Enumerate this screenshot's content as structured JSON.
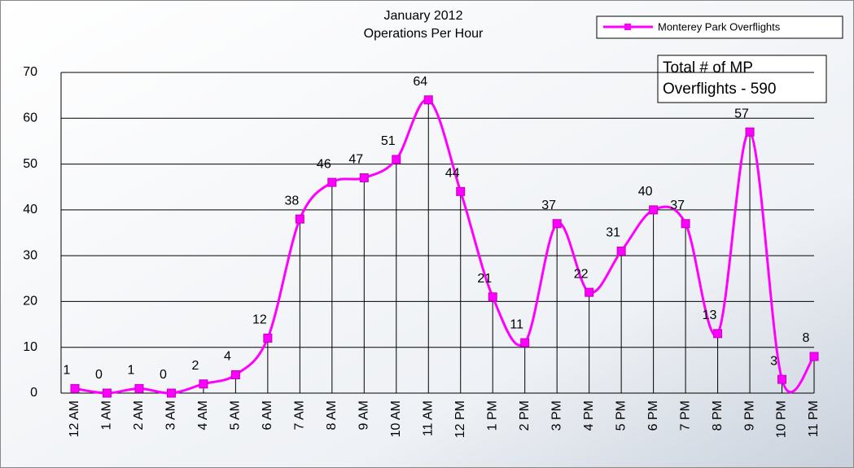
{
  "chart_data": {
    "type": "line",
    "title": "January 2012",
    "subtitle": "Operations Per Hour",
    "annotation": [
      "Total # of MP",
      "Overflights - 590"
    ],
    "categories": [
      "12 AM",
      "1 AM",
      "2 AM",
      "3 AM",
      "4 AM",
      "5 AM",
      "6 AM",
      "7 AM",
      "8 AM",
      "9 AM",
      "10 AM",
      "11 AM",
      "12 PM",
      "1 PM",
      "2 PM",
      "3 PM",
      "4 PM",
      "5 PM",
      "6 PM",
      "7 PM",
      "8 PM",
      "9 PM",
      "10 PM",
      "11 PM"
    ],
    "series": [
      {
        "name": "Monterey Park Overflights",
        "color": "#ff00ff",
        "values": [
          1,
          0,
          1,
          0,
          2,
          4,
          12,
          38,
          46,
          47,
          51,
          64,
          44,
          21,
          11,
          37,
          22,
          31,
          40,
          37,
          13,
          57,
          3,
          8
        ]
      }
    ],
    "ylim": [
      0,
      70
    ],
    "yticks": [
      0,
      10,
      20,
      30,
      40,
      50,
      60,
      70
    ],
    "grid": true,
    "legend": "top-right"
  }
}
